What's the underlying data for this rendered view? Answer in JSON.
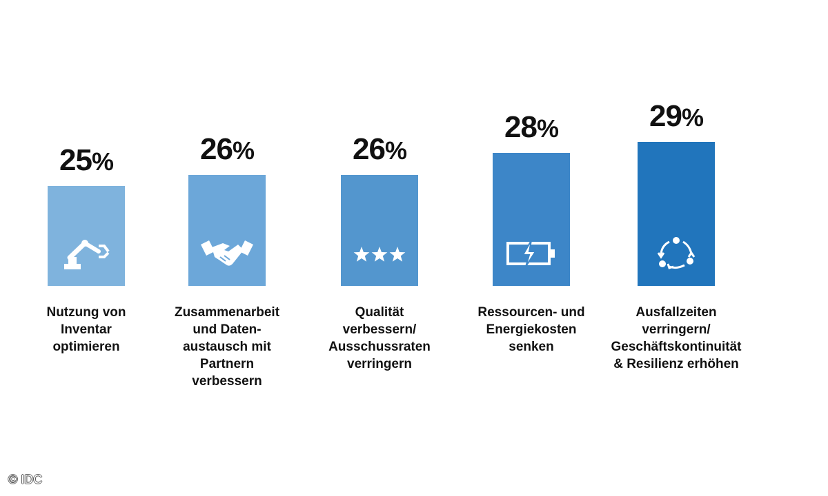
{
  "chart_data": {
    "type": "bar",
    "title": "",
    "xlabel": "",
    "ylabel": "",
    "unit": "%",
    "ylim": [
      0,
      30
    ],
    "categories": [
      "Nutzung von\nInventar\noptimieren",
      "Zusammenarbeit\nund Daten-\naustausch mit\nPartnern\nverbessern",
      "Qualität\nverbessern/\nAusschussraten\nverringern",
      "Ressourcen- und\nEnergiekosten\nsenken",
      "Ausfallzeiten\nverringern/\nGeschäftskontinuität\n& Resilienz erhöhen"
    ],
    "values": [
      25,
      26,
      26,
      28,
      29
    ],
    "value_labels": [
      "25",
      "26",
      "26",
      "28",
      "29"
    ],
    "percent_sign": "%",
    "colors": [
      "#7FB3DD",
      "#6CA7D9",
      "#5396CE",
      "#3D86C8",
      "#2175BC"
    ],
    "icons": [
      "robot-arm-icon",
      "handshake-icon",
      "three-stars-icon",
      "battery-charging-icon",
      "cycle-arrows-icon"
    ]
  },
  "copyright": "© IDC"
}
